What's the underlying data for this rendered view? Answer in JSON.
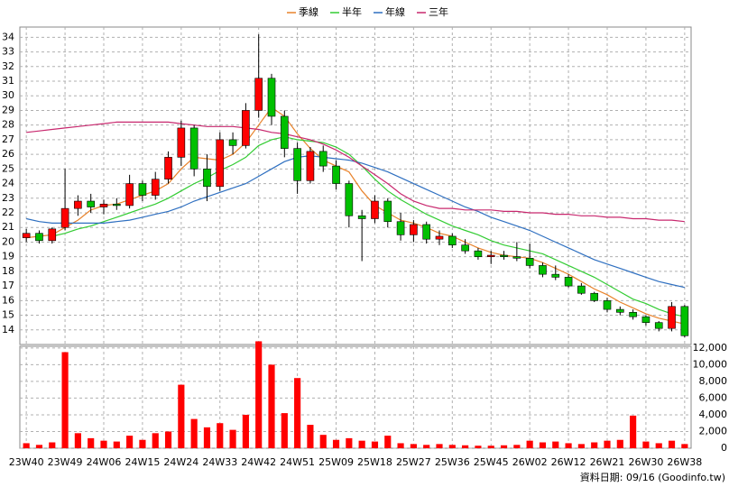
{
  "chart_data": {
    "type": "candlestick",
    "categories": [
      "23W40",
      null,
      null,
      "23W49",
      null,
      null,
      "24W06",
      null,
      null,
      "24W15",
      null,
      null,
      "24W24",
      null,
      null,
      "24W33",
      null,
      null,
      "24W42",
      null,
      null,
      "24W51",
      null,
      null,
      "25W09",
      null,
      null,
      "25W18",
      null,
      null,
      "25W27",
      null,
      null,
      "25W36",
      null,
      null,
      "25W45",
      null,
      null,
      "26W02",
      null,
      null,
      "26W12",
      null,
      null,
      "26W21",
      null,
      null,
      "26W30",
      null,
      null,
      "26W38"
    ],
    "open": [
      20.3,
      20.6,
      20.1,
      21.0,
      22.3,
      22.8,
      22.4,
      22.6,
      22.5,
      24.0,
      23.2,
      24.3,
      25.8,
      27.8,
      25.0,
      23.8,
      27.0,
      26.6,
      29.0,
      31.2,
      28.6,
      26.4,
      24.2,
      26.2,
      25.2,
      24.0,
      21.8,
      21.6,
      22.8,
      21.4,
      20.5,
      21.2,
      20.2,
      20.4,
      19.8,
      19.4,
      19.0,
      19.1,
      19.0,
      18.9,
      18.4,
      17.8,
      17.6,
      17.0,
      16.5,
      16.0,
      15.4,
      15.2,
      14.9,
      14.5,
      14.1,
      15.6
    ],
    "high": [
      20.9,
      20.8,
      21.0,
      25.0,
      23.2,
      23.3,
      22.9,
      23.0,
      24.6,
      24.2,
      24.8,
      26.2,
      28.3,
      28.0,
      26.0,
      27.5,
      27.5,
      29.5,
      34.2,
      31.5,
      29.0,
      26.8,
      26.5,
      26.6,
      25.6,
      24.2,
      22.2,
      23.2,
      23.0,
      22.0,
      21.5,
      21.4,
      20.8,
      20.6,
      20.2,
      19.6,
      19.4,
      19.4,
      20.0,
      19.9,
      18.6,
      18.4,
      17.8,
      17.2,
      16.6,
      16.2,
      15.6,
      15.4,
      15.0,
      14.6,
      15.9,
      15.7
    ],
    "low": [
      20.0,
      19.9,
      19.9,
      20.8,
      21.8,
      22.0,
      21.9,
      22.2,
      22.3,
      22.8,
      22.9,
      24.0,
      25.2,
      24.5,
      22.8,
      23.5,
      26.0,
      26.4,
      28.5,
      28.0,
      25.8,
      23.3,
      24.0,
      24.8,
      23.6,
      21.0,
      18.7,
      21.3,
      21.0,
      20.1,
      20.0,
      19.9,
      19.8,
      19.6,
      19.2,
      18.8,
      18.5,
      18.8,
      18.7,
      18.2,
      17.6,
      17.4,
      16.9,
      16.4,
      15.9,
      15.2,
      15.0,
      14.7,
      14.3,
      13.9,
      13.9,
      13.5
    ],
    "close": [
      20.6,
      20.1,
      20.9,
      22.3,
      22.8,
      22.4,
      22.6,
      22.5,
      24.0,
      23.2,
      24.3,
      25.8,
      27.8,
      25.0,
      23.8,
      27.0,
      26.6,
      29.0,
      31.2,
      28.6,
      26.4,
      24.2,
      26.2,
      25.2,
      24.0,
      21.8,
      21.6,
      22.8,
      21.4,
      20.5,
      21.2,
      20.2,
      20.4,
      19.8,
      19.4,
      19.0,
      19.1,
      19.0,
      18.9,
      18.4,
      17.8,
      17.6,
      17.0,
      16.5,
      16.0,
      15.4,
      15.2,
      14.9,
      14.5,
      14.1,
      15.6,
      13.6
    ],
    "up_color": "#ff0000",
    "down_color": "#00c000",
    "series": [
      {
        "name": "季線",
        "color": "#e8822a",
        "values": [
          20.3,
          20.4,
          20.5,
          21.0,
          21.5,
          22.2,
          22.5,
          22.6,
          22.9,
          23.2,
          23.5,
          24.0,
          25.0,
          25.8,
          25.7,
          25.6,
          26.0,
          26.8,
          28.0,
          29.2,
          28.6,
          27.4,
          26.4,
          25.6,
          25.2,
          24.8,
          23.5,
          22.5,
          22.0,
          21.5,
          21.3,
          21.0,
          20.6,
          20.4,
          20.0,
          19.6,
          19.3,
          19.1,
          19.0,
          18.9,
          18.6,
          18.2,
          17.8,
          17.3,
          16.8,
          16.4,
          15.9,
          15.5,
          15.1,
          14.8,
          14.6,
          14.4
        ]
      },
      {
        "name": "半年",
        "color": "#33cc33",
        "values": [
          null,
          null,
          20.4,
          20.6,
          20.9,
          21.1,
          21.4,
          21.7,
          22.0,
          22.3,
          22.6,
          23.0,
          23.5,
          24.0,
          24.4,
          24.9,
          25.3,
          25.8,
          26.6,
          27.0,
          27.2,
          27.0,
          26.9,
          26.8,
          26.5,
          26.0,
          25.2,
          24.3,
          23.5,
          22.9,
          22.4,
          21.9,
          21.5,
          21.1,
          20.8,
          20.5,
          20.1,
          19.8,
          19.6,
          19.4,
          19.2,
          18.8,
          18.4,
          18.0,
          17.6,
          17.1,
          16.6,
          16.1,
          15.8,
          15.4,
          15.1,
          14.9
        ]
      },
      {
        "name": "年線",
        "color": "#2e6fc0",
        "values": [
          21.6,
          21.4,
          21.3,
          21.3,
          21.3,
          21.3,
          21.3,
          21.4,
          21.5,
          21.7,
          21.9,
          22.1,
          22.4,
          22.8,
          23.1,
          23.4,
          23.7,
          24.0,
          24.5,
          25.0,
          25.5,
          25.8,
          25.9,
          25.8,
          25.7,
          25.6,
          25.4,
          25.1,
          24.8,
          24.4,
          24.0,
          23.6,
          23.2,
          22.8,
          22.4,
          22.1,
          21.7,
          21.4,
          21.1,
          20.8,
          20.4,
          20.0,
          19.6,
          19.2,
          18.8,
          18.5,
          18.2,
          17.9,
          17.6,
          17.3,
          17.1,
          16.9
        ]
      },
      {
        "name": "三年",
        "color": "#c8286e",
        "values": [
          27.5,
          27.6,
          27.7,
          27.8,
          27.9,
          28.0,
          28.1,
          28.2,
          28.2,
          28.2,
          28.2,
          28.2,
          28.1,
          28.0,
          27.9,
          27.9,
          27.9,
          27.8,
          27.7,
          27.5,
          27.4,
          27.2,
          27.0,
          26.7,
          26.3,
          25.8,
          25.2,
          24.6,
          24.0,
          23.3,
          22.8,
          22.5,
          22.3,
          22.3,
          22.2,
          22.2,
          22.2,
          22.1,
          22.1,
          22.0,
          22.0,
          21.9,
          21.9,
          21.8,
          21.8,
          21.7,
          21.7,
          21.6,
          21.6,
          21.5,
          21.5,
          21.4
        ]
      }
    ],
    "ylim": [
      13,
      34.7
    ],
    "yticks": [
      14,
      15,
      16,
      17,
      18,
      19,
      20,
      21,
      22,
      23,
      24,
      25,
      26,
      27,
      28,
      29,
      30,
      31,
      32,
      33,
      34
    ],
    "grid": true,
    "legend": "top",
    "volume": {
      "color": "#ff0000",
      "values": [
        600,
        400,
        700,
        11500,
        1800,
        1200,
        900,
        800,
        1500,
        1000,
        1800,
        2000,
        7600,
        3500,
        2500,
        3000,
        2200,
        4000,
        12800,
        10000,
        4200,
        8400,
        2800,
        1600,
        1000,
        1200,
        900,
        800,
        1500,
        600,
        500,
        400,
        500,
        400,
        350,
        300,
        300,
        350,
        400,
        900,
        700,
        800,
        600,
        500,
        700,
        900,
        1000,
        3900,
        800,
        600,
        900,
        500
      ],
      "ylim": [
        0,
        12200
      ],
      "yticks": [
        0,
        {
          "value": 2000,
          "label": "2,000"
        },
        {
          "value": 4000,
          "label": "4,000"
        },
        {
          "value": 6000,
          "label": "6,000"
        },
        {
          "value": 8000,
          "label": "8,000"
        },
        {
          "value": 10000,
          "label": "10,000"
        },
        {
          "value": 12000,
          "label": "12,000"
        }
      ]
    },
    "footer": "資料日期: 09/16 (Goodinfo.tw)"
  }
}
